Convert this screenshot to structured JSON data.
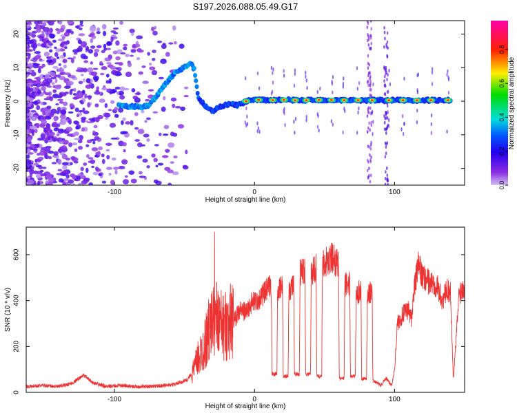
{
  "title": "S197.2026.088.05.49.G17",
  "colors": {
    "snr_line": "#ee3333",
    "axis": "#000000",
    "background": "#ffffff"
  },
  "chart_data": [
    {
      "type": "heatmap",
      "name": "spectrogram",
      "xlabel": "Height of straight line (km)",
      "ylabel": "Frequency (Hz)",
      "xlim": [
        -163,
        150
      ],
      "ylim": [
        -25,
        24
      ],
      "xticks": [
        -100,
        0,
        100
      ],
      "yticks": [
        -20,
        -10,
        0,
        10,
        20
      ],
      "colorbar": {
        "label": "Normalized spectral amplitude",
        "ticks": [
          "0.0",
          "0.2",
          "0.4",
          "0.6",
          "0.8"
        ],
        "range": [
          0,
          0.97
        ],
        "colormap": "purple-blue-cyan-green-yellow-red-magenta"
      },
      "tone_ridge": [
        [
          -97,
          -1.4
        ],
        [
          -92,
          -1.5
        ],
        [
          -86,
          -1.6
        ],
        [
          -80,
          -1.8
        ],
        [
          -75,
          -1.0
        ],
        [
          -70,
          1.5
        ],
        [
          -65,
          4.5
        ],
        [
          -60,
          7.0
        ],
        [
          -55,
          9.0
        ],
        [
          -50,
          10.0
        ],
        [
          -46,
          11.5
        ],
        [
          -43,
          9.5
        ],
        [
          -40,
          1.0
        ],
        [
          -35,
          -1.5
        ],
        [
          -30,
          -3.0
        ],
        [
          -24,
          -1.5
        ],
        [
          -18,
          -0.8
        ],
        [
          -12,
          -1.2
        ],
        [
          -6,
          0.0
        ],
        [
          0,
          0.4
        ],
        [
          10,
          0.3
        ],
        [
          20,
          0.4
        ],
        [
          30,
          0.3
        ],
        [
          40,
          0.3
        ],
        [
          50,
          0.4
        ],
        [
          60,
          0.3
        ],
        [
          70,
          0.3
        ],
        [
          80,
          0.3
        ],
        [
          90,
          0.3
        ],
        [
          100,
          0.3
        ],
        [
          110,
          0.3
        ],
        [
          120,
          0.3
        ],
        [
          130,
          0.3
        ],
        [
          140,
          0.3
        ]
      ],
      "peaks_x": [
        -6,
        3,
        13,
        21,
        29,
        37,
        46,
        55,
        64,
        74,
        84,
        96,
        106,
        116,
        126,
        138
      ]
    },
    {
      "type": "line",
      "name": "snr",
      "xlabel": "Height of straight line (km)",
      "ylabel": "SNR (10 * v/v)",
      "xlim": [
        -163,
        150
      ],
      "ylim": [
        0,
        720
      ],
      "xticks": [
        -100,
        0,
        100
      ],
      "yticks": [
        0,
        200,
        400,
        600
      ],
      "series": [
        {
          "name": "SNR",
          "x": [
            -163,
            -150,
            -140,
            -130,
            -122,
            -115,
            -105,
            -95,
            -85,
            -75,
            -65,
            -57,
            -52,
            -48,
            -44,
            -40,
            -36,
            -32,
            -28,
            -25,
            -22,
            -18,
            -14,
            -10,
            -6,
            -2,
            0,
            4,
            8,
            12,
            12.5,
            16,
            16.5,
            20,
            20.5,
            24,
            24.5,
            28,
            28.5,
            32,
            32.5,
            36,
            36.5,
            40,
            40.5,
            44,
            44.5,
            48,
            48.5,
            52,
            56,
            60,
            60.5,
            64,
            64.5,
            68,
            68.5,
            72,
            72.5,
            76,
            76.5,
            80,
            80.5,
            84,
            84.5,
            88,
            90,
            94,
            98,
            100,
            102,
            106,
            110,
            112,
            114,
            117,
            120,
            125,
            130,
            134,
            138,
            140,
            142,
            146,
            150
          ],
          "values": [
            25,
            30,
            25,
            40,
            75,
            40,
            25,
            30,
            25,
            25,
            30,
            35,
            45,
            55,
            90,
            150,
            200,
            280,
            330,
            300,
            280,
            310,
            320,
            360,
            350,
            390,
            395,
            410,
            440,
            470,
            80,
            80,
            440,
            460,
            70,
            70,
            450,
            470,
            80,
            80,
            520,
            540,
            80,
            80,
            520,
            545,
            70,
            70,
            560,
            570,
            590,
            550,
            60,
            60,
            470,
            480,
            70,
            70,
            420,
            450,
            60,
            60,
            430,
            440,
            50,
            40,
            30,
            60,
            30,
            100,
            300,
            340,
            360,
            320,
            450,
            555,
            500,
            480,
            470,
            400,
            450,
            430,
            55,
            430,
            470
          ]
        }
      ]
    }
  ]
}
